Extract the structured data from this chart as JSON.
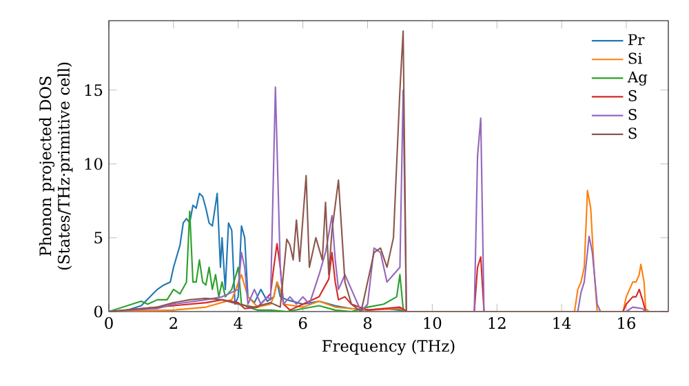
{
  "chart_data": {
    "type": "line",
    "xlabel": "Frequency (THz)",
    "ylabel": "Phonon projected DOS (States/THz·primitive cell)",
    "xlim": [
      0,
      17.3
    ],
    "ylim": [
      0,
      19.7
    ],
    "xticks": [
      0,
      2,
      4,
      6,
      8,
      10,
      12,
      14,
      16
    ],
    "yticks": [
      0,
      5,
      10,
      15
    ],
    "grid": false,
    "legend": "top right",
    "marker": "none",
    "line_style": "solid",
    "series": [
      {
        "name": "Pr",
        "color": "#1f77b4",
        "x": [
          0,
          0.5,
          1.0,
          1.5,
          1.7,
          1.9,
          2.0,
          2.2,
          2.3,
          2.4,
          2.5,
          2.6,
          2.7,
          2.8,
          2.9,
          3.0,
          3.1,
          3.2,
          3.35,
          3.45,
          3.5,
          3.6,
          3.7,
          3.8,
          3.9,
          4.0,
          4.1,
          4.2,
          4.3,
          4.5,
          4.7,
          4.9,
          5.1,
          5.2,
          5.3,
          5.5,
          6.0,
          6.5,
          7.0,
          7.5,
          8.0,
          8.5,
          9.0,
          9.2,
          17.3
        ],
        "values": [
          0,
          0.05,
          0.4,
          1.5,
          1.8,
          2,
          3,
          4.5,
          6,
          6.3,
          6,
          7.2,
          7,
          8,
          7.8,
          7,
          6,
          5.8,
          8,
          3,
          5,
          1.5,
          6,
          5.5,
          0.5,
          1,
          5.8,
          5,
          1,
          0.6,
          1.5,
          0.7,
          1,
          2,
          1,
          0.8,
          0.5,
          0.7,
          0.4,
          0.2,
          0.1,
          0.2,
          0.1,
          0,
          0
        ]
      },
      {
        "name": "Si",
        "color": "#ff7f0e",
        "x": [
          0,
          2,
          3,
          3.8,
          4.1,
          4.3,
          4.6,
          5,
          5.1,
          5.2,
          5.3,
          5.4,
          6,
          6.5,
          7,
          8,
          9,
          9.2,
          14.4,
          14.5,
          14.6,
          14.7,
          14.8,
          14.9,
          15.0,
          15.1,
          15.9,
          16.0,
          16.2,
          16.3,
          16.4,
          16.45,
          16.55,
          16.6,
          16.7,
          17.3
        ],
        "values": [
          0,
          0.1,
          0.3,
          0.8,
          2.5,
          1,
          0.3,
          0.5,
          1,
          2,
          1.5,
          0.5,
          0.3,
          0.7,
          0.3,
          0.1,
          0.2,
          0,
          0,
          1.5,
          2,
          3,
          8.2,
          7,
          3,
          0,
          0,
          1,
          2,
          2,
          2.5,
          3.2,
          2,
          0.2,
          0,
          0
        ]
      },
      {
        "name": "Ag",
        "color": "#2ca02c",
        "x": [
          0,
          1.0,
          1.2,
          1.5,
          1.8,
          2.0,
          2.2,
          2.4,
          2.5,
          2.6,
          2.7,
          2.8,
          2.9,
          3.0,
          3.1,
          3.2,
          3.3,
          3.4,
          3.5,
          3.6,
          3.8,
          4.0,
          4.1,
          4.3,
          4.6,
          5,
          5.5,
          6,
          6.5,
          7,
          7.5,
          8,
          8.5,
          8.9,
          9.0,
          9.1,
          9.2,
          17.3
        ],
        "values": [
          0,
          0.7,
          0.5,
          0.8,
          0.8,
          1.5,
          1.2,
          2,
          6.8,
          2,
          2,
          3.5,
          2,
          1.8,
          3,
          1.5,
          2.5,
          1,
          2,
          1,
          1.5,
          3,
          0.5,
          0.3,
          0.1,
          0.1,
          0,
          0.2,
          0.4,
          0.1,
          0,
          0.3,
          0.5,
          1,
          2.5,
          0.2,
          0,
          0
        ]
      },
      {
        "name": "S",
        "color": "#d62728",
        "x": [
          0,
          1.5,
          2,
          3,
          3.5,
          4,
          4.2,
          4.6,
          5.0,
          5.1,
          5.2,
          5.3,
          5.4,
          5.6,
          6,
          6.5,
          6.8,
          6.9,
          7.0,
          7.1,
          7.3,
          7.5,
          8,
          9,
          9.2,
          11.3,
          11.4,
          11.5,
          11.6,
          15.9,
          16.0,
          16.2,
          16.3,
          16.4,
          16.5,
          16.6,
          17.3
        ],
        "values": [
          0,
          0.3,
          0.4,
          0.6,
          0.8,
          0.6,
          0.2,
          0.3,
          1.2,
          3,
          4.6,
          3,
          0.5,
          0.1,
          0.5,
          1,
          2.2,
          4,
          2,
          0.8,
          1,
          0.5,
          0.1,
          0.3,
          0,
          0,
          3,
          3.7,
          0,
          0,
          0.5,
          1,
          1,
          1.5,
          0.8,
          0,
          0
        ]
      },
      {
        "name": "S",
        "color": "#9467bd",
        "x": [
          0,
          1.5,
          2,
          3,
          3.5,
          4.0,
          4.1,
          4.2,
          4.3,
          4.5,
          4.7,
          4.9,
          5.0,
          5.15,
          5.3,
          5.4,
          5.6,
          5.8,
          6.0,
          6.2,
          6.5,
          6.7,
          6.9,
          7.0,
          7.1,
          7.3,
          7.5,
          7.8,
          8.0,
          8.2,
          8.4,
          8.6,
          8.8,
          9.0,
          9.1,
          9.2,
          11.3,
          11.4,
          11.5,
          11.6,
          14.5,
          14.6,
          14.7,
          14.85,
          14.95,
          15.1,
          15.2,
          16,
          16.2,
          16.5,
          16.6,
          17.3
        ],
        "values": [
          0,
          0.2,
          0.5,
          0.8,
          1,
          1.5,
          4,
          3,
          0.5,
          1.5,
          0.5,
          1,
          0.8,
          15.2,
          3,
          0.5,
          1,
          0.5,
          1,
          0.5,
          2.5,
          4,
          6.5,
          3.5,
          1.5,
          2.5,
          1.5,
          0,
          0.5,
          4.3,
          4,
          2,
          2.5,
          3,
          15,
          0,
          0,
          10.5,
          13.1,
          0,
          0,
          1.3,
          2,
          5.1,
          4,
          0.5,
          0,
          0,
          0.3,
          0.2,
          0,
          0
        ]
      },
      {
        "name": "S",
        "color": "#8c564b",
        "x": [
          0,
          1.5,
          2,
          2.5,
          3,
          3.5,
          4,
          4.5,
          5,
          5.3,
          5.5,
          5.6,
          5.7,
          5.8,
          5.9,
          6.1,
          6.2,
          6.4,
          6.6,
          6.7,
          6.8,
          6.9,
          7.1,
          7.3,
          7.5,
          7.8,
          8.0,
          8.2,
          8.4,
          8.6,
          8.8,
          9.0,
          9.1,
          9.2,
          17.3
        ],
        "values": [
          0,
          0.3,
          0.6,
          0.8,
          0.9,
          0.8,
          0.5,
          0.3,
          0.6,
          0.3,
          4.9,
          4.5,
          3.5,
          6.2,
          3.4,
          9.2,
          3,
          5,
          3.5,
          7.4,
          2.5,
          5.5,
          8.9,
          2,
          0.5,
          0,
          2,
          4,
          4.3,
          3,
          5,
          15,
          19,
          0,
          0
        ]
      }
    ]
  }
}
